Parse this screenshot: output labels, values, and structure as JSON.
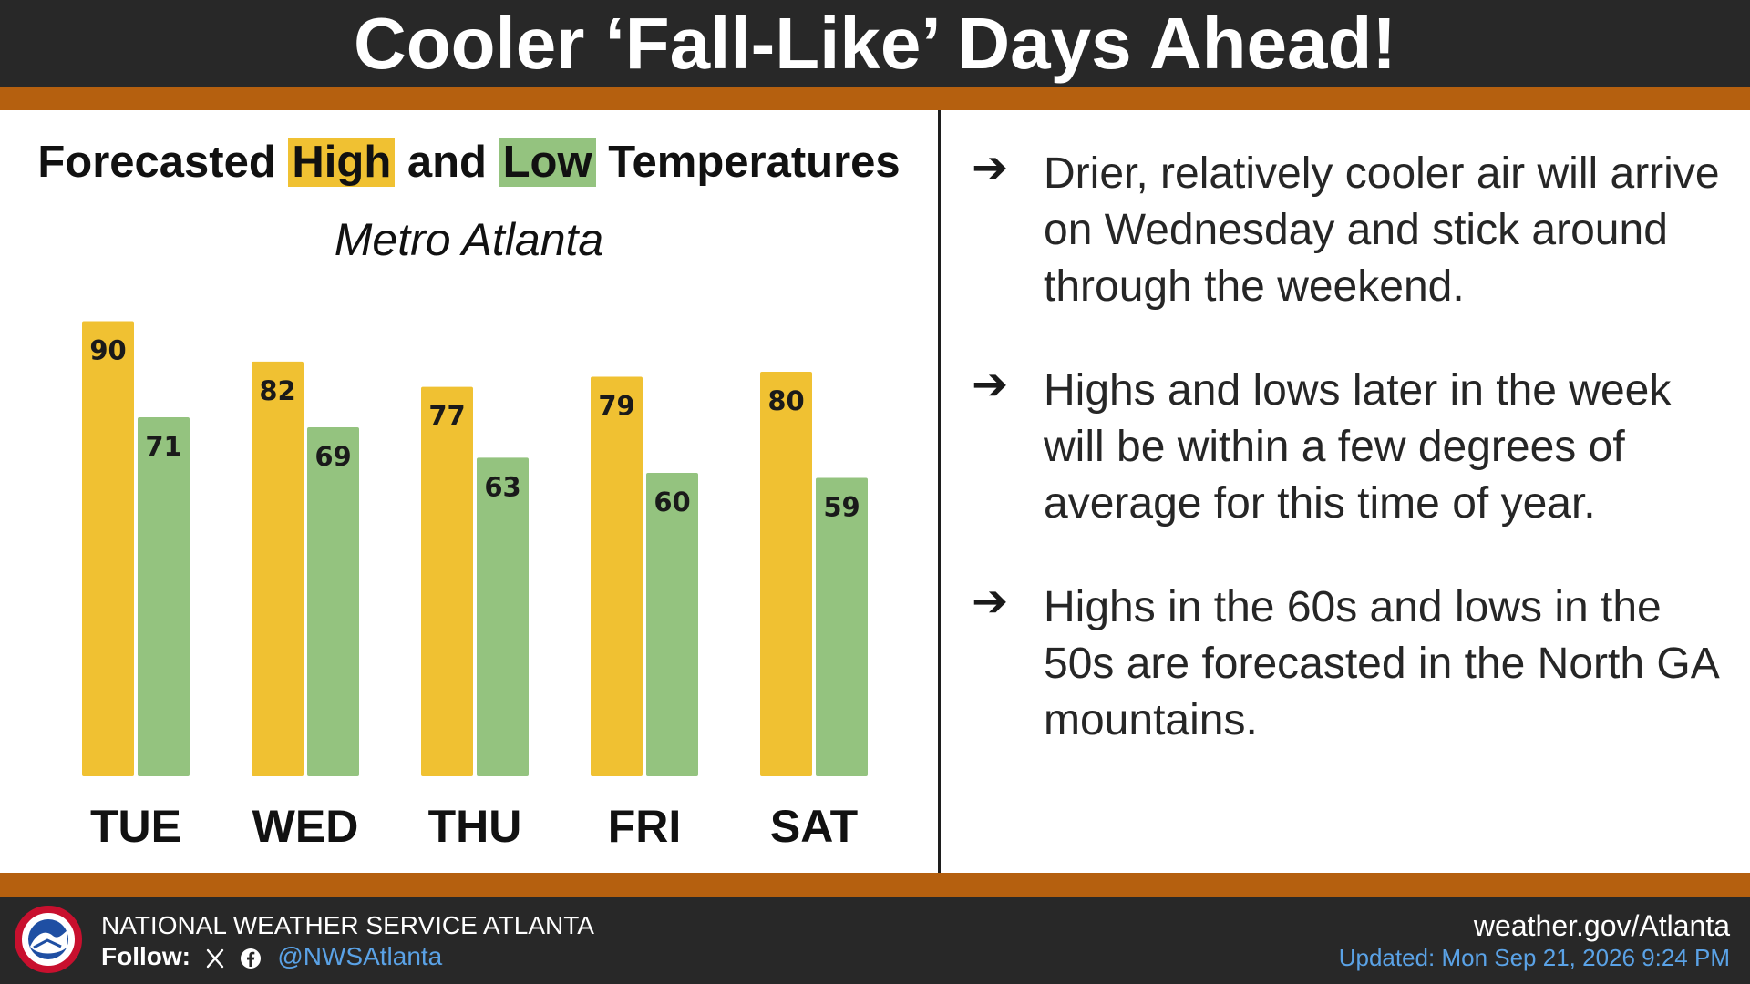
{
  "header": {
    "title": "Cooler ‘Fall-Like’ Days Ahead!"
  },
  "colors": {
    "high": "#f0c132",
    "low": "#94c37f",
    "accent_stripe": "#b5600f",
    "dark": "#282828",
    "link": "#5aa2e6"
  },
  "chart_data": {
    "type": "bar",
    "title_parts": [
      "Forecasted ",
      "High",
      " and ",
      "Low",
      " Temperatures"
    ],
    "subtitle": "Metro Atlanta",
    "categories": [
      "TUE",
      "WED",
      "THU",
      "FRI",
      "SAT"
    ],
    "series": [
      {
        "name": "High",
        "values": [
          90,
          82,
          77,
          79,
          80
        ]
      },
      {
        "name": "Low",
        "values": [
          71,
          69,
          63,
          60,
          59
        ]
      }
    ],
    "data_labels": true,
    "grid": false,
    "legend": "in title"
  },
  "bullets": [
    {
      "icon": "arrow-right-icon",
      "text": "Drier, relatively cooler air will arrive on Wednesday and stick around through the weekend."
    },
    {
      "icon": "arrow-right-icon",
      "text": "Highs and lows later in the week will be within a few degrees of average for this time of year."
    },
    {
      "icon": "arrow-right-icon",
      "text": "Highs in the 60s and lows in the 50s are forecasted in the North GA mountains."
    }
  ],
  "footer": {
    "org": "NATIONAL WEATHER SERVICE ATLANTA",
    "follow_label": "Follow:",
    "handle": "@NWSAtlanta",
    "site": "weather.gov/Atlanta",
    "updated": "Updated: Mon Sep 21, 2026 9:24 PM",
    "logo_icon": "nws-logo-icon",
    "social_icons": [
      "x-icon",
      "facebook-icon"
    ]
  }
}
